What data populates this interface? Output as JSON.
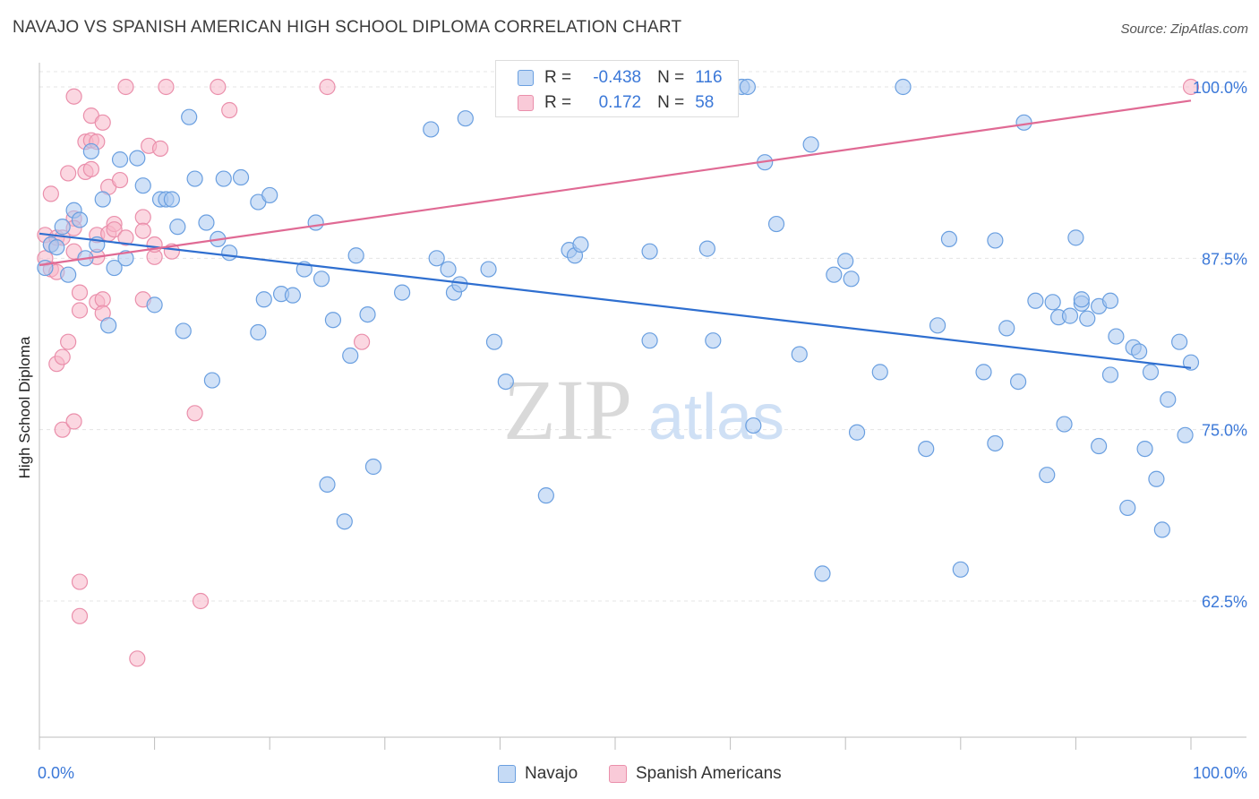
{
  "header": {
    "title": "NAVAJO VS SPANISH AMERICAN HIGH SCHOOL DIPLOMA CORRELATION CHART",
    "source": "Source: ZipAtlas.com"
  },
  "legend": {
    "rows": [
      {
        "r_label": "R =",
        "r_value": "-0.438",
        "n_label": "N =",
        "n_value": "116"
      },
      {
        "r_label": "R =",
        "r_value": "0.172",
        "n_label": "N =",
        "n_value": "58"
      }
    ]
  },
  "bottom_legend": {
    "items": [
      "Navajo",
      "Spanish Americans"
    ]
  },
  "watermark": {
    "zip": "ZIP",
    "atlas": "atlas"
  },
  "colors": {
    "navajo_fill": "#a9c8f0",
    "navajo_stroke": "#6a9fe0",
    "navajo_line": "#2f6fd0",
    "spanish_fill": "#f7b6c8",
    "spanish_stroke": "#ea8fab",
    "spanish_line": "#e06a94",
    "tick_label": "#3b78d8",
    "grid": "#e4e4e4"
  },
  "chart_data": {
    "type": "scatter",
    "xlabel": "",
    "ylabel": "High School Diploma",
    "xlim": [
      0,
      100
    ],
    "ylim": [
      50,
      102
    ],
    "x_tick_labels": [
      {
        "x": 0,
        "label": "0.0%"
      },
      {
        "x": 100,
        "label": "100.0%"
      }
    ],
    "y_tick_labels": [
      {
        "y": 100,
        "label": "100.0%"
      },
      {
        "y": 87.5,
        "label": "87.5%"
      },
      {
        "y": 75,
        "label": "75.0%"
      },
      {
        "y": 62.5,
        "label": "62.5%"
      }
    ],
    "grid": "horizontal dashed",
    "legend_position": "top-center",
    "series": [
      {
        "name": "Navajo",
        "r": -0.438,
        "n": 116,
        "trend": {
          "x0": 0,
          "y0": 89.3,
          "x1": 100,
          "y1": 79.5
        },
        "points": [
          [
            0.5,
            86.8
          ],
          [
            1,
            88.5
          ],
          [
            1.5,
            88.3
          ],
          [
            2,
            89.8
          ],
          [
            2.5,
            86.3
          ],
          [
            3,
            91
          ],
          [
            3.5,
            90.3
          ],
          [
            4,
            87.5
          ],
          [
            4.5,
            95.3
          ],
          [
            5,
            88.5
          ],
          [
            5.5,
            91.8
          ],
          [
            6,
            82.6
          ],
          [
            6.5,
            86.8
          ],
          [
            7,
            94.7
          ],
          [
            7.5,
            87.5
          ],
          [
            8.5,
            94.8
          ],
          [
            9,
            92.8
          ],
          [
            10,
            84.1
          ],
          [
            10.5,
            91.8
          ],
          [
            11,
            91.8
          ],
          [
            11.5,
            91.8
          ],
          [
            12,
            89.8
          ],
          [
            12.5,
            82.2
          ],
          [
            13,
            97.8
          ],
          [
            13.5,
            93.3
          ],
          [
            14.5,
            90.1
          ],
          [
            15,
            78.6
          ],
          [
            15.5,
            88.9
          ],
          [
            16,
            93.3
          ],
          [
            16.5,
            87.9
          ],
          [
            17.5,
            93.4
          ],
          [
            19,
            91.6
          ],
          [
            19,
            82.1
          ],
          [
            19.5,
            84.5
          ],
          [
            20,
            92.1
          ],
          [
            21,
            84.9
          ],
          [
            22,
            84.8
          ],
          [
            23,
            86.7
          ],
          [
            24,
            90.1
          ],
          [
            24.5,
            86
          ],
          [
            25,
            71
          ],
          [
            25.5,
            83
          ],
          [
            26.5,
            68.3
          ],
          [
            27,
            80.4
          ],
          [
            27.5,
            87.7
          ],
          [
            28.5,
            83.4
          ],
          [
            29,
            72.3
          ],
          [
            31.5,
            85
          ],
          [
            34,
            96.9
          ],
          [
            34.5,
            87.5
          ],
          [
            35.5,
            86.7
          ],
          [
            36,
            85
          ],
          [
            36.5,
            85.6
          ],
          [
            37,
            97.7
          ],
          [
            39,
            86.7
          ],
          [
            39.5,
            81.4
          ],
          [
            40.5,
            78.5
          ],
          [
            44,
            70.2
          ],
          [
            46,
            88.1
          ],
          [
            46.5,
            87.7
          ],
          [
            47,
            88.5
          ],
          [
            53,
            88
          ],
          [
            53,
            81.5
          ],
          [
            54,
            100
          ],
          [
            58,
            88.2
          ],
          [
            58.5,
            81.5
          ],
          [
            61,
            100
          ],
          [
            61.5,
            100
          ],
          [
            62,
            75.3
          ],
          [
            63,
            94.5
          ],
          [
            64,
            90
          ],
          [
            66,
            80.5
          ],
          [
            67,
            95.8
          ],
          [
            68,
            64.5
          ],
          [
            69,
            86.3
          ],
          [
            70,
            87.3
          ],
          [
            70.5,
            86
          ],
          [
            71,
            74.8
          ],
          [
            73,
            79.2
          ],
          [
            75,
            100
          ],
          [
            77,
            73.6
          ],
          [
            78,
            82.6
          ],
          [
            79,
            88.9
          ],
          [
            80,
            64.8
          ],
          [
            82,
            79.2
          ],
          [
            83,
            74
          ],
          [
            84,
            82.4
          ],
          [
            85,
            78.5
          ],
          [
            86.5,
            84.4
          ],
          [
            87.5,
            71.7
          ],
          [
            88,
            84.3
          ],
          [
            88.5,
            83.2
          ],
          [
            89,
            75.4
          ],
          [
            89.5,
            83.3
          ],
          [
            90,
            89
          ],
          [
            90.5,
            84.2
          ],
          [
            90.5,
            84.5
          ],
          [
            91,
            83.1
          ],
          [
            92,
            73.8
          ],
          [
            92,
            84
          ],
          [
            93,
            79
          ],
          [
            93,
            84.4
          ],
          [
            93.5,
            81.8
          ],
          [
            94.5,
            69.3
          ],
          [
            95,
            81
          ],
          [
            95.5,
            80.7
          ],
          [
            96,
            73.6
          ],
          [
            96.5,
            79.2
          ],
          [
            97,
            71.4
          ],
          [
            97.5,
            67.7
          ],
          [
            98,
            77.2
          ],
          [
            99,
            81.4
          ],
          [
            99.5,
            74.6
          ],
          [
            100,
            79.9
          ],
          [
            85.5,
            97.4
          ],
          [
            83,
            88.8
          ]
        ]
      },
      {
        "name": "Spanish Americans",
        "r": 0.172,
        "n": 58,
        "trend": {
          "x0": 0,
          "y0": 87,
          "x1": 100,
          "y1": 99
        },
        "points": [
          [
            0.5,
            89.2
          ],
          [
            0.5,
            87.5
          ],
          [
            1,
            88.5
          ],
          [
            1,
            86.7
          ],
          [
            1,
            92.2
          ],
          [
            1.5,
            89
          ],
          [
            1.5,
            86.5
          ],
          [
            1.5,
            79.8
          ],
          [
            2,
            75
          ],
          [
            2,
            89
          ],
          [
            2,
            80.3
          ],
          [
            2.5,
            93.7
          ],
          [
            2.5,
            81.4
          ],
          [
            3,
            90.4
          ],
          [
            3,
            89.7
          ],
          [
            3,
            75.6
          ],
          [
            3,
            99.3
          ],
          [
            3.5,
            85
          ],
          [
            3.5,
            83.7
          ],
          [
            3.5,
            63.9
          ],
          [
            4,
            96
          ],
          [
            4,
            93.8
          ],
          [
            3.5,
            61.4
          ],
          [
            4.5,
            96.1
          ],
          [
            4.5,
            94
          ],
          [
            4.5,
            97.9
          ],
          [
            5,
            89.2
          ],
          [
            5,
            87.6
          ],
          [
            5,
            84.3
          ],
          [
            5.5,
            97.4
          ],
          [
            5.5,
            84.5
          ],
          [
            5.5,
            83.5
          ],
          [
            6,
            92.7
          ],
          [
            6,
            89.3
          ],
          [
            6.5,
            90
          ],
          [
            6.5,
            89.6
          ],
          [
            7,
            93.2
          ],
          [
            7.5,
            100
          ],
          [
            7.5,
            89
          ],
          [
            8.5,
            58.3
          ],
          [
            9,
            84.5
          ],
          [
            9,
            90.5
          ],
          [
            9,
            89.5
          ],
          [
            9.5,
            95.7
          ],
          [
            10,
            87.6
          ],
          [
            10.5,
            95.5
          ],
          [
            11,
            100
          ],
          [
            11.5,
            88
          ],
          [
            13.5,
            76.2
          ],
          [
            14,
            62.5
          ],
          [
            15.5,
            100
          ],
          [
            16.5,
            98.3
          ],
          [
            25,
            100
          ],
          [
            28,
            81.4
          ],
          [
            5,
            96
          ],
          [
            10,
            88.5
          ],
          [
            3,
            88
          ],
          [
            100,
            100
          ]
        ]
      }
    ]
  }
}
